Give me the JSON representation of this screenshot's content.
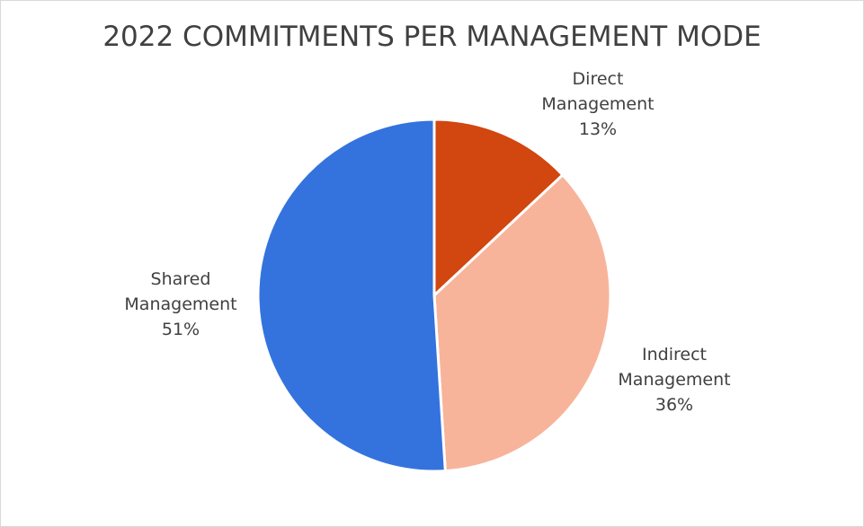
{
  "chart_data": {
    "type": "pie",
    "title": "2022 COMMITMENTS PER MANAGEMENT MODE",
    "categories": [
      "Direct Management",
      "Indirect Management",
      "Shared Management"
    ],
    "values": [
      13,
      36,
      51
    ],
    "value_labels": [
      "13%",
      "36%",
      "51%"
    ],
    "colors": [
      "#d2460f",
      "#f7b49a",
      "#3473de"
    ]
  }
}
